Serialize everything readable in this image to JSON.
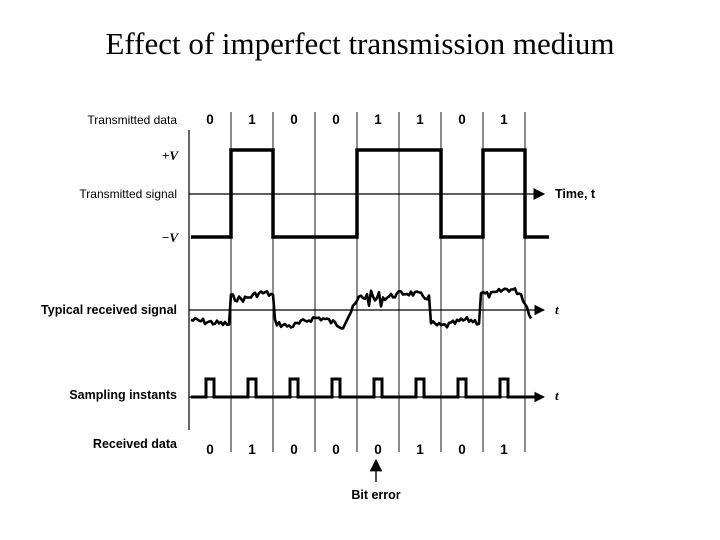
{
  "title": "Effect of imperfect transmission medium",
  "labels": {
    "transmitted_data": "Transmitted data",
    "plus_v": "+V",
    "transmitted_signal": "Transmitted signal",
    "minus_v": "−V",
    "time_axis": "Time, t",
    "received_signal": "Typical received signal",
    "received_t": "t",
    "sampling_instants": "Sampling instants",
    "sampling_t": "t",
    "received_data": "Received data",
    "bit_error": "Bit error"
  },
  "transmitted_bits": [
    "0",
    "1",
    "0",
    "0",
    "1",
    "1",
    "0",
    "1"
  ],
  "received_bits": [
    "0",
    "1",
    "0",
    "0",
    "0",
    "1",
    "0",
    "1"
  ],
  "colors": {
    "ink": "#000000",
    "background": "#ffffff"
  }
}
